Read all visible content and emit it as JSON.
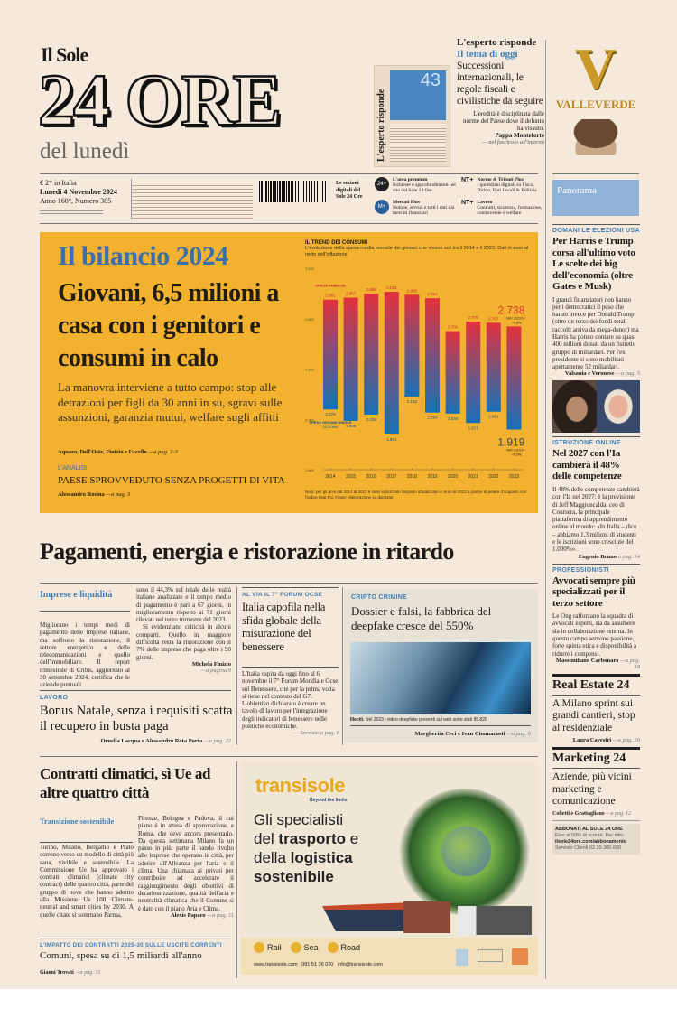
{
  "masthead": {
    "pre": "Il Sole",
    "title": "24 ORE",
    "edition": "del lunedì"
  },
  "esperto": {
    "cover_label": "L'esperto risponde",
    "cover_number": "43",
    "header": "L'esperto risponde",
    "kicker": "Il tema di oggi",
    "headline": "Successioni internazionali, le regole fiscali e civilistiche da seguire",
    "quote": "L'eredità è disciplinata dalle norme del Paese dove il defunto ha vissuto.",
    "author": "Pappa Monteforte",
    "ref": "— nel fascicolo all'interno"
  },
  "ad_top": {
    "brand": "VALLEVERDE",
    "logo_letter": "V"
  },
  "info": {
    "price": "€ 2* in Italia",
    "date": "Lunedì 4 Novembre 2024",
    "issue": "Anno 160°, Numero 305",
    "sections_label": "Le sezioni digitali del Sole 24 Ore",
    "services": [
      {
        "icon": "24+",
        "title": "L'area premium",
        "text": "Inchieste e approfondimenti nel sito del Sole 24 Ore"
      },
      {
        "icon": "NT+",
        "title": "Norme & Tributi Plus",
        "text": "I quotidiani digitali su Fisco, Diritto, Enti Locali & Edilizia"
      },
      {
        "icon": "M+",
        "title": "Mercati Plus",
        "text": "Notizie, servizi e tutti i dati dai mercati finanziari"
      },
      {
        "icon": "NT+",
        "title": "Lavoro",
        "text": "Contratti, sicurezza, formazione, controversie e welfare"
      }
    ]
  },
  "panorama": "Panorama",
  "lead": {
    "kicker": "Il bilancio 2024",
    "headline": "Giovani, 6,5 milioni a casa con i genitori e consumi in calo",
    "deck": "La manovra interviene a tutto campo: stop alle detrazioni per figli da 30 anni in su, sgravi sulle assunzioni, garanzia mutui, welfare sugli affitti",
    "byline": "Aquaro, Dell'Oste, Finizio e Uccello",
    "page": "—a pag. 2-3",
    "analysis_kicker": "L'ANALISI",
    "analysis_title": "PAESE SPROVVEDUTO SENZA PROGETTI DI VITA",
    "analysis_byline": "Alessandro Rosina",
    "analysis_page": "—a pag. 3"
  },
  "chart_data": {
    "type": "bar",
    "title": "IL TREND DEI CONSUMI",
    "subtitle": "L'evoluzione della spesa media mensile dei giovani che vivono soli tra il 2014 e il 2023. Dati in euro al netto dell'inflazione",
    "categories": [
      "2014",
      "2015",
      "2016",
      "2017",
      "2018",
      "2019",
      "2020",
      "2021",
      "2022",
      "2023"
    ],
    "series": [
      {
        "name": "SPESA FAMIGLIE",
        "values": [
          2951,
          2967,
          2998,
          3013,
          2990,
          2962,
          2701,
          2776,
          2767,
          2738
        ],
        "color": "#e2313d",
        "labels": [
          "2.951",
          "2.967",
          "2.998",
          "3.013",
          "2.990",
          "2.962",
          "2.701",
          "2.776",
          "2.767",
          "2.738"
        ]
      },
      {
        "name": "SPESA GIOVANI SINGLE",
        "sub": "18-34 anni",
        "values": [
          2079,
          1988,
          2038,
          1881,
          2182,
          2054,
          2046,
          1971,
          2061,
          1919
        ],
        "color": "#1670b8",
        "labels": [
          "2.079",
          "1.988",
          "2.038",
          "1.881",
          "2.182",
          "2.054",
          "2.046",
          "1.971",
          "2.061",
          "1.919"
        ]
      }
    ],
    "ylim": [
      1600,
      3200
    ],
    "yticks": [
      "3.200",
      "2.800",
      "2.400",
      "2.000",
      "1.600"
    ],
    "ytick_values": [
      3200,
      2800,
      2400,
      2000,
      1600
    ],
    "annotations": {
      "fam_var_label": "VAR 2023/14",
      "fam_var": "-7,3%",
      "single_var_label": "VAR 2023/14",
      "single_var": "-7,7%"
    },
    "note": "Nota: per gli anni dal 2014 al 2022 è stato indicizzato l'importo attualizzato in euro al 2023 a partire di potere d'acquisto con l'indice Istat Foi. Fonte: elaborazione su dati Istat"
  },
  "main_headline": "Pagamenti, energia e ristorazione in ritardo",
  "imprese": {
    "label": "Imprese e liquidità",
    "col1": "Migliorano i tempi medi di pagamento delle imprese italiane, ma soffrono la ristorazione, il settore energetico e delle telecomunicazioni e quello dell'immobiliare. Il report trimestrale di Cribis, aggiornato al 30 settembre 2024, certifica che le aziende puntuali",
    "col2a": "sono il 44,3% sul totale delle realtà italiane analizzate e il tempo medio di pagamento è pari a 67 giorni, in miglioramento rispetto ai 71 giorni rilevati nel terzo trimestre del 2023.",
    "col2b": "Si evidenziano criticità in alcuni comparti. Quello in maggiore difficoltà resta la ristorazione con il 7% delle imprese che paga oltre i 90 giorni.",
    "byline": "Michela Finizio",
    "page": "—a pagina 9"
  },
  "lavoro": {
    "kicker": "LAVORO",
    "headline": "Bonus Natale, senza i requisiti scatta il recupero in busta paga",
    "byline": "Ornella Lacqua e Alessandro Rota Porta",
    "page": "—a pag. 22"
  },
  "ocse": {
    "kicker": "AL VIA IL 7° FORUM OCSE",
    "headline": "Italia capofila nella sfida globale della misurazione del benessere",
    "body": "L'Italia ospita da oggi fino al 6 novembre il 7° Forum Mondiale Ocse sul Benessere, che per la prima volta si tiene nel contesto del G7. L'obiettivo dichiarato è creare un tavolo di lavoro per l'integrazione degli indicatori di benessere nelle politiche economiche.",
    "page": "— Servizio a pag. 8"
  },
  "cripto": {
    "kicker": "CRIPTO CRIMINE",
    "headline": "Dossier e falsi, la fabbrica del deepfake cresce del 550%",
    "caption_bold": "Illeciti.",
    "caption": "Nel 2023 i video deepfake presenti sul web sono stati 95.820",
    "byline": "Margherita Ceci e Ivan Cimmarusti",
    "page": "—a pag. 6"
  },
  "clima": {
    "headline": "Contratti climatici, sì Ue ad altre quattro città",
    "label": "Transizione sostenibile",
    "col1": "Torino, Milano, Bergamo e Prato corrono verso un modello di città più sana, vivibile e sostenibile. La Commissione Ue ha approvato i contratti climatici (climate city contract) delle quattro città, parte del gruppo di nove che hanno aderito alla Missione Ue 100 Climate-neutral and smart cities by 2030. A quelle citate si sommano Parma,",
    "col2": "Firenze, Bologna e Padova, il cui piano è in attesa di approvazione, e Roma, che deve ancora presentarlo. Da questa settimana Milano fa un passo in più: parte il bando rivolto alle imprese che operano in città, per aderire all'Alleanza per l'aria e il clima. Una chiamata ai privati per contribuire ad accelerare il raggiungimento degli obiettivi di decarbonizzazione, qualità dell'aria e neutralità climatica che il Comune si è dato con il piano Aria e Clima.",
    "byline": "Alexis Paparo",
    "page": "—a pag. 11"
  },
  "comuni": {
    "kicker": "L'IMPATTO DEI CONTRATTI 2025-30 SULLE USCITE CORRENTI",
    "headline": "Comuni, spesa su di 1,5 miliardi all'anno",
    "byline": "Gianni Trovati",
    "page": "—a pag. 33"
  },
  "ad": {
    "brand": "transisole",
    "tagline": "Beyond the limits",
    "line1": "Gli specialisti",
    "line2a": "del ",
    "line2b": "trasporto",
    "line2c": " e",
    "line3a": "della ",
    "line3b": "logistica",
    "line4": "sostenibile",
    "modes": [
      "Rail",
      "Sea",
      "Road"
    ],
    "contacts": "www.transisole.com   081 51 36 020   info@transisole.com"
  },
  "side": [
    {
      "kicker": "DOMANI LE ELEZIONI USA",
      "headline": "Per Harris e Trump corsa all'ultimo voto Le scelte dei big dell'economia (oltre Gates e Musk)",
      "body": "I grandi finanziatori non hanno per i democratici il peso che hanno invece per Donald Trump (oltre un terzo dei fondi totali raccolti arriva da mega-donor) ma Harris ha potuto contare su quasi 400 milioni donati da un ristretto gruppo di miliardari. Per l'ex presidente si sono mobilitati apertamente 52 miliardari.",
      "byline": "Valsania e Veronese",
      "page": "—a pag. 5"
    },
    {
      "kicker": "ISTRUZIONE ONLINE",
      "headline": "Nel 2027 con l'Ia cambierà il 48% delle competenze",
      "body": "Il 48% delle competenze cambierà con l'Ia nel 2027: è la previsione di Jeff Maggioncalda, ceo di Coursera, la principale piattaforma di apprendimento online al mondo: «In Italia – dice – abbiamo 1,3 milioni di studenti e le iscrizioni sono cresciute del 1.000%».",
      "byline": "Eugenio Bruno",
      "page": "a pag. 14"
    },
    {
      "kicker": "PROFESSIONISTI",
      "headline": "Avvocati sempre più specializzati per il terzo settore",
      "body": "Le Ong rafforzano la squadra di avvocati esperti, sia da assumere sia in collaborazione esterna. In questo campo servono passione, forte spinta etica e disponibilità a ridurre i compensi.",
      "byline": "Massimiliano Carbonaro",
      "page": "—a pag. 18"
    }
  ],
  "realestate": {
    "title": "Real Estate 24",
    "headline": "A Milano sprint sui grandi cantieri, stop al residenziale",
    "byline": "Laura Cavestri",
    "page": "—a pag. 20"
  },
  "marketing": {
    "title": "Marketing 24",
    "headline": "Aziende, più vicini marketing e comunicazione",
    "byline": "Colletti e Grattagliano",
    "page": "—a pag. 12"
  },
  "subscribe": {
    "title": "ABBONATI AL SOLE 24 ORE",
    "line1": "Fino al 50% di sconto. Per info:",
    "url": "ilsole24ore.com/abbonamento",
    "phone": "Servizio Clienti 02.30.300.600"
  }
}
